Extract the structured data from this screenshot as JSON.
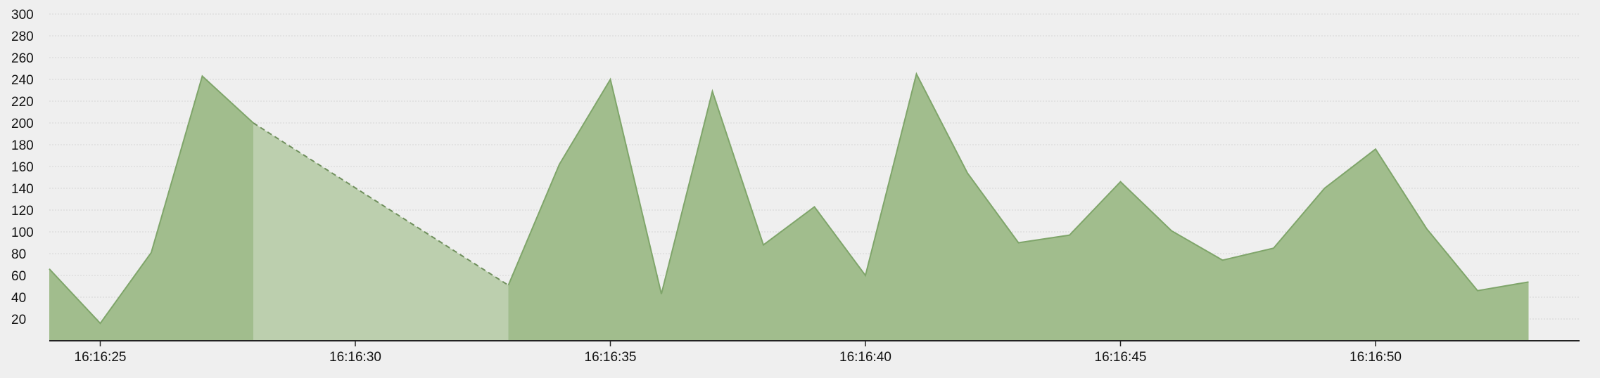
{
  "chart_data": {
    "type": "area",
    "title": "",
    "xlabel": "",
    "ylabel": "",
    "ylim": [
      0,
      300
    ],
    "y_ticks": [
      20,
      40,
      60,
      80,
      100,
      120,
      140,
      160,
      180,
      200,
      220,
      240,
      260,
      280,
      300
    ],
    "x_ticks": [
      "16:16:25",
      "16:16:30",
      "16:16:35",
      "16:16:40",
      "16:16:45",
      "16:16:50"
    ],
    "grid": true,
    "colors": {
      "fill": "#a1bd8d",
      "stroke": "#7fa56a",
      "gap_fill": "#bccfae",
      "gap_stroke": "#6f8f5c",
      "background": "#efefef"
    },
    "series": [
      {
        "x": [
          "16:16:24",
          "16:16:25",
          "16:16:26",
          "16:16:27",
          "16:16:28",
          "16:16:33",
          "16:16:34",
          "16:16:35",
          "16:16:36",
          "16:16:37",
          "16:16:38",
          "16:16:39",
          "16:16:40",
          "16:16:41",
          "16:16:42",
          "16:16:43",
          "16:16:44",
          "16:16:45",
          "16:16:46",
          "16:16:47",
          "16:16:48",
          "16:16:49",
          "16:16:50",
          "16:16:51",
          "16:16:52",
          "16:16:53"
        ],
        "values": [
          66,
          16,
          81,
          243,
          200,
          51,
          162,
          240,
          43,
          229,
          88,
          123,
          60,
          245,
          154,
          90,
          97,
          146,
          101,
          74,
          85,
          140,
          176,
          103,
          46,
          54
        ],
        "missing_ranges": [
          [
            "16:16:28",
            "16:16:33"
          ]
        ]
      }
    ]
  }
}
